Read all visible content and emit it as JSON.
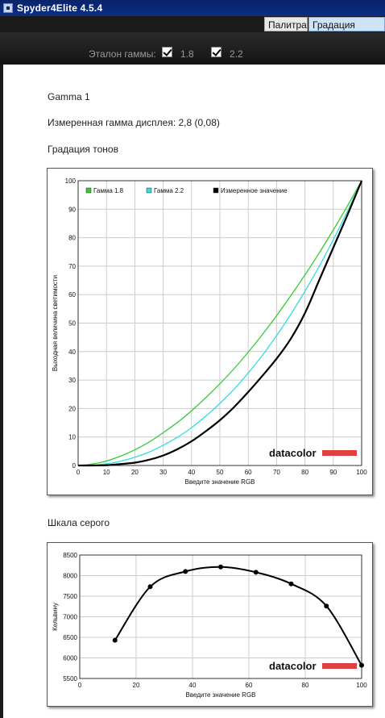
{
  "window": {
    "title": "Spyder4Elite 4.5.4"
  },
  "tabs": [
    {
      "label": "Палитра"
    },
    {
      "label": "Градация тонов"
    }
  ],
  "toolbar": {
    "gamma_label": "Эталон гаммы:",
    "gamma_options": [
      {
        "label": "1.8",
        "checked": true
      },
      {
        "label": "2.2",
        "checked": true
      }
    ]
  },
  "report": {
    "heading": "Gamma 1",
    "measured_gamma": "Измеренная гамма дисплея: 2,8 (0,08)",
    "tone_section_title": "Градация тонов",
    "gray_section_title": "Шкала серого"
  },
  "logo_text": "datacolor",
  "colors": {
    "gamma18": "#33cc33",
    "gamma22": "#33dddd",
    "measured": "#000000",
    "logo_bar": "#e04040",
    "grid": "#cccccc"
  },
  "chart_data": [
    {
      "type": "line",
      "xlabel": "Введите значение RGB",
      "ylabel": "Выходная величина светимости",
      "xlim": [
        0,
        100
      ],
      "ylim": [
        0,
        100
      ],
      "xticks": [
        0,
        10,
        20,
        30,
        40,
        50,
        60,
        70,
        80,
        90,
        100
      ],
      "yticks": [
        0,
        10,
        20,
        30,
        40,
        50,
        60,
        70,
        80,
        90,
        100
      ],
      "grid": true,
      "legend": "top-left",
      "series": [
        {
          "name": "Гамма 1.8",
          "color": "#33cc33",
          "x": [
            0,
            5,
            10,
            15,
            20,
            25,
            30,
            35,
            40,
            45,
            50,
            55,
            60,
            65,
            70,
            75,
            80,
            85,
            90,
            95,
            100
          ],
          "y": [
            0,
            0.5,
            1.6,
            3.3,
            5.5,
            8.2,
            11.5,
            15.1,
            19.2,
            23.8,
            28.7,
            34.0,
            39.8,
            46.0,
            52.6,
            59.6,
            66.9,
            74.6,
            82.7,
            91.2,
            100
          ]
        },
        {
          "name": "Гамма 2.2",
          "color": "#33dddd",
          "x": [
            0,
            5,
            10,
            15,
            20,
            25,
            30,
            35,
            40,
            45,
            50,
            55,
            60,
            65,
            70,
            75,
            80,
            85,
            90,
            95,
            100
          ],
          "y": [
            0,
            0.1,
            0.6,
            1.5,
            2.9,
            4.7,
            7.1,
            9.9,
            13.3,
            17.3,
            21.8,
            26.8,
            32.5,
            38.7,
            45.6,
            53.1,
            61.2,
            69.9,
            79.3,
            89.3,
            100
          ]
        },
        {
          "name": "Измеренное значение",
          "color": "#000000",
          "x": [
            0,
            5,
            10,
            15,
            20,
            25,
            30,
            35,
            40,
            45,
            50,
            55,
            60,
            65,
            70,
            75,
            80,
            85,
            90,
            95,
            100
          ],
          "y": [
            0,
            0,
            0.1,
            0.5,
            1.0,
            2.0,
            3.5,
            5.7,
            8.5,
            12.0,
            15.9,
            20.5,
            25.8,
            31.5,
            37.5,
            44.5,
            53.5,
            65.0,
            76.5,
            88.0,
            100
          ]
        }
      ]
    },
    {
      "type": "line",
      "xlabel": "Введите значение RGB",
      "ylabel": "Кельвину",
      "xlim": [
        0,
        100
      ],
      "ylim": [
        5500,
        8500
      ],
      "xticks": [
        0,
        20,
        40,
        60,
        80,
        100
      ],
      "yticks": [
        5500,
        6000,
        6500,
        7000,
        7500,
        8000,
        8500
      ],
      "grid": true,
      "series": [
        {
          "x": [
            12.5,
            25,
            37.5,
            50,
            62.5,
            75,
            87.5,
            100
          ],
          "y": [
            6430,
            7730,
            8100,
            8210,
            8080,
            7800,
            7260,
            5820
          ]
        }
      ]
    }
  ]
}
